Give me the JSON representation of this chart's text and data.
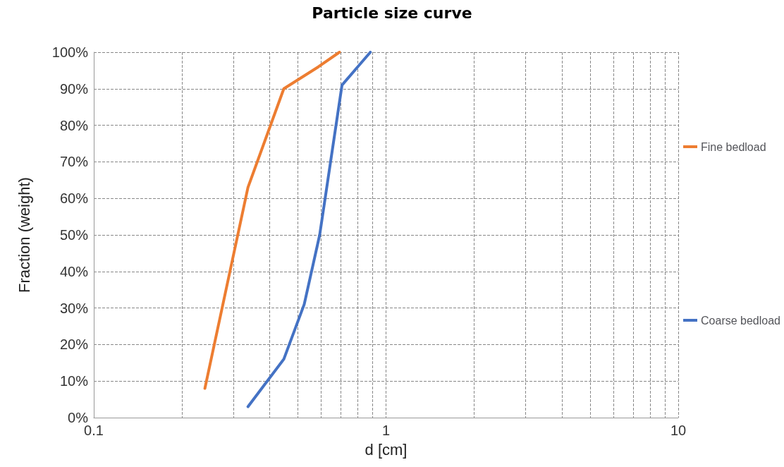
{
  "chart_data": {
    "type": "line",
    "title": "Particle size curve",
    "xlabel": "d [cm]",
    "ylabel": "Fraction (weight)",
    "log": "x",
    "grid": true,
    "legend": "right",
    "marker": "none",
    "line_style": "solid",
    "xlim": [
      0.1,
      10
    ],
    "xticks": [
      {
        "value": 0.1,
        "label": "0.1"
      },
      {
        "value": 0.2,
        "label": null
      },
      {
        "value": 0.3,
        "label": null
      },
      {
        "value": 0.4,
        "label": null
      },
      {
        "value": 0.5,
        "label": null
      },
      {
        "value": 0.6,
        "label": null
      },
      {
        "value": 0.7,
        "label": null
      },
      {
        "value": 0.8,
        "label": null
      },
      {
        "value": 0.9,
        "label": null
      },
      {
        "value": 1,
        "label": "1"
      },
      {
        "value": 2,
        "label": null
      },
      {
        "value": 3,
        "label": null
      },
      {
        "value": 4,
        "label": null
      },
      {
        "value": 5,
        "label": null
      },
      {
        "value": 6,
        "label": null
      },
      {
        "value": 7,
        "label": null
      },
      {
        "value": 8,
        "label": null
      },
      {
        "value": 9,
        "label": null
      },
      {
        "value": 10,
        "label": "10"
      }
    ],
    "ylim": [
      0,
      100
    ],
    "yticks": [
      {
        "value": 0,
        "label": "0%"
      },
      {
        "value": 10,
        "label": "10%"
      },
      {
        "value": 20,
        "label": "20%"
      },
      {
        "value": 30,
        "label": "30%"
      },
      {
        "value": 40,
        "label": "40%"
      },
      {
        "value": 50,
        "label": "50%"
      },
      {
        "value": 60,
        "label": "60%"
      },
      {
        "value": 70,
        "label": "70%"
      },
      {
        "value": 80,
        "label": "80%"
      },
      {
        "value": 90,
        "label": "90%"
      },
      {
        "value": 100,
        "label": "100%"
      }
    ],
    "series": [
      {
        "name": "Fine bedload",
        "color": "#ed7d31",
        "x": [
          0.24,
          0.337,
          0.447,
          0.587,
          0.693
        ],
        "values": [
          8,
          63,
          90,
          96,
          100
        ]
      },
      {
        "name": "Coarse bedload",
        "color": "#4472c4",
        "x": [
          0.337,
          0.447,
          0.525,
          0.593,
          0.707,
          0.884
        ],
        "values": [
          3,
          16,
          31,
          50,
          91,
          100
        ]
      }
    ]
  }
}
